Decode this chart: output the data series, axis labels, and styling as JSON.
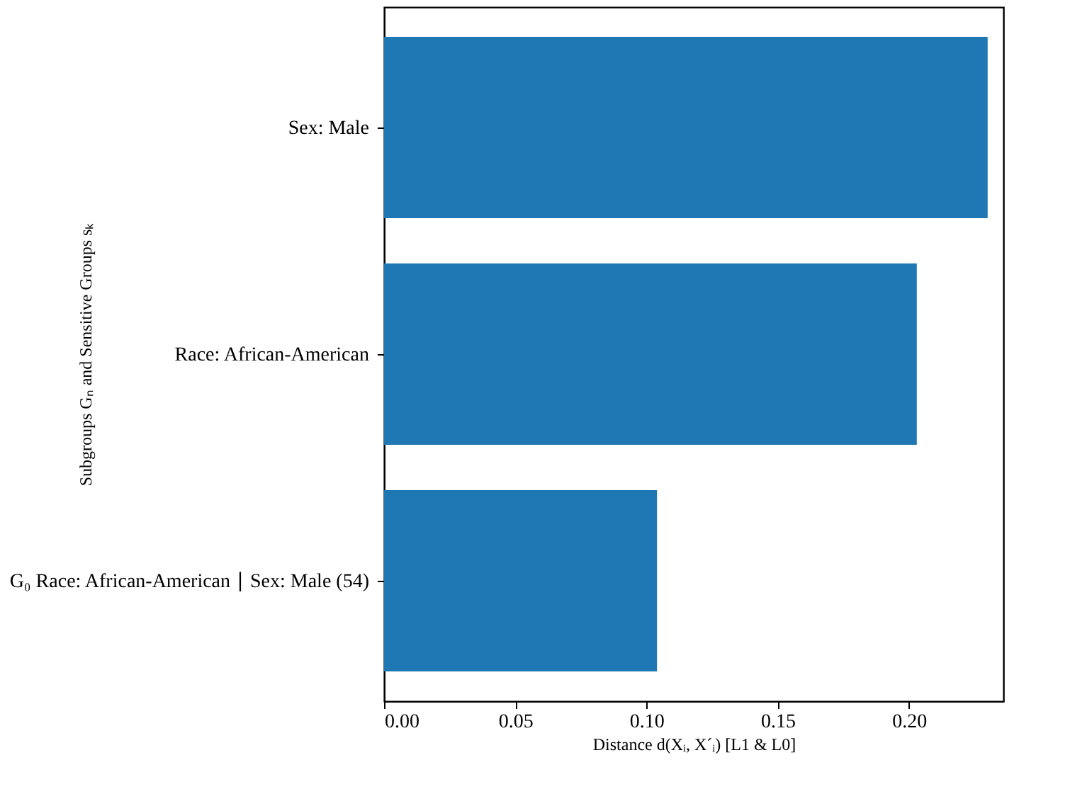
{
  "chart_data": {
    "type": "bar",
    "orientation": "horizontal",
    "categories": [
      "Sex: Male",
      "Race: African-American",
      "G₀ Race: African-American ∣ Sex: Male (54)"
    ],
    "values": [
      0.23,
      0.203,
      0.104
    ],
    "color": "#1f77b4",
    "xlim": [
      0,
      0.236
    ],
    "xticks": [
      {
        "value": 0,
        "label": "0.00"
      },
      {
        "value": 0.05,
        "label": "0.05"
      },
      {
        "value": 0.1,
        "label": "0.10"
      },
      {
        "value": 0.15,
        "label": "0.15"
      },
      {
        "value": 0.2,
        "label": "0.20"
      }
    ],
    "xlabel": "Distance d(Xᵢ, X´ᵢ) [L1 & L0]",
    "ylabel": "Subgroups Gₙ and Sensitive Groups sₖ",
    "grid": false
  }
}
